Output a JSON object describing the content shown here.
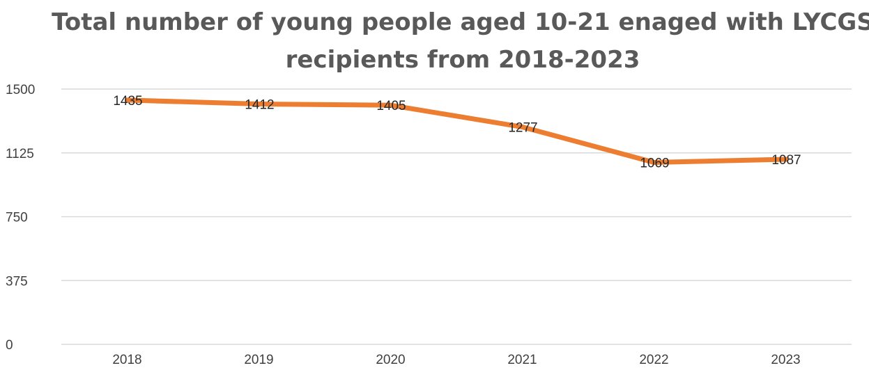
{
  "chart_data": {
    "type": "line",
    "title_lines": [
      "Total number of young people aged 10-21 enaged with LYCGS",
      "recipients from 2018-2023"
    ],
    "categories": [
      "2018",
      "2019",
      "2020",
      "2021",
      "2022",
      "2023"
    ],
    "series": [
      {
        "values": [
          1435,
          1412,
          1405,
          1277,
          1069,
          1087
        ],
        "color": "#ED7D31"
      }
    ],
    "data_labels": [
      "1435",
      "1412",
      "1405",
      "1277",
      "1069",
      "1087"
    ],
    "y_ticks": [
      0,
      375,
      750,
      1125,
      1500
    ],
    "y_tick_labels": [
      "0",
      "375",
      "750",
      "1125",
      "1500"
    ],
    "ylim": [
      0,
      1500
    ],
    "xlabel": "",
    "ylabel": "",
    "grid": true,
    "legend": "none",
    "gridline_color": "#d9d9d9"
  }
}
